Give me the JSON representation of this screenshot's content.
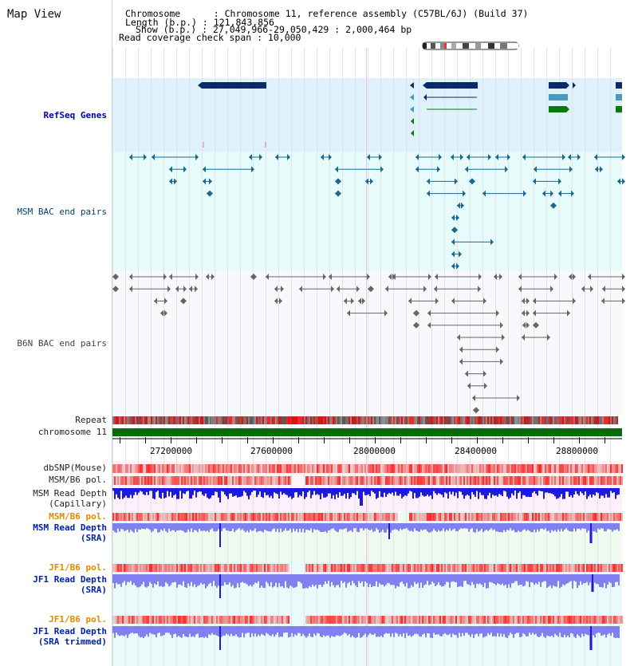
{
  "header": {
    "title": "Map View",
    "lines": [
      "Chromosome      : Chromosome 11, reference assembly (C57BL/6J) (Build 37)",
      "Length (b.p.) : 121,843,856",
      "Show (b.p.) : 27,049,966-29,050,429 : 2,000,464 bp",
      "Read coverage check span : 10,000"
    ]
  },
  "tracks": {
    "refseq": "RefSeq Genes",
    "msm_bac": "MSM BAC end pairs",
    "b6n_bac": "B6N BAC end pairs",
    "repeat": "Repeat",
    "chromosome": "chromosome 11",
    "dbsnp": "dbSNP(Mouse)",
    "msm_b6_pol_1": "MSM/B6 pol.",
    "msm_depth_cap_1": "MSM Read Depth",
    "msm_depth_cap_2": "(Capillary)",
    "msm_b6_pol_2": "MSM/B6 pol.",
    "msm_depth_sra_1": "MSM Read Depth",
    "msm_depth_sra_2": "(SRA)",
    "jf1_b6_pol_1": "JF1/B6 pol.",
    "jf1_depth_sra_1": "JF1 Read Depth",
    "jf1_depth_sra_2": "(SRA)",
    "jf1_b6_pol_2": "JF1/B6 pol.",
    "jf1_depth_trim_1": "JF1 Read Depth",
    "jf1_depth_trim_2": "(SRA trimmed)"
  },
  "axis": {
    "ticks": [
      "27200000",
      "27600000",
      "28000000",
      "28400000",
      "28800000"
    ]
  },
  "colors": {
    "refseq_bg": "#dff2fb",
    "msm_bg": "#e8fbfb",
    "gene_dark": "#0a2a6a",
    "gene_light": "#4a9ac0",
    "gene_green": "#0a7a10",
    "bac_msm": "#1a6a90",
    "bac_b6n": "#666666",
    "chrom_green": "#0a6a0a",
    "snp_red": "#e02020",
    "depth_blue": "#1a1ae0",
    "depth_light": "#8080f0"
  }
}
